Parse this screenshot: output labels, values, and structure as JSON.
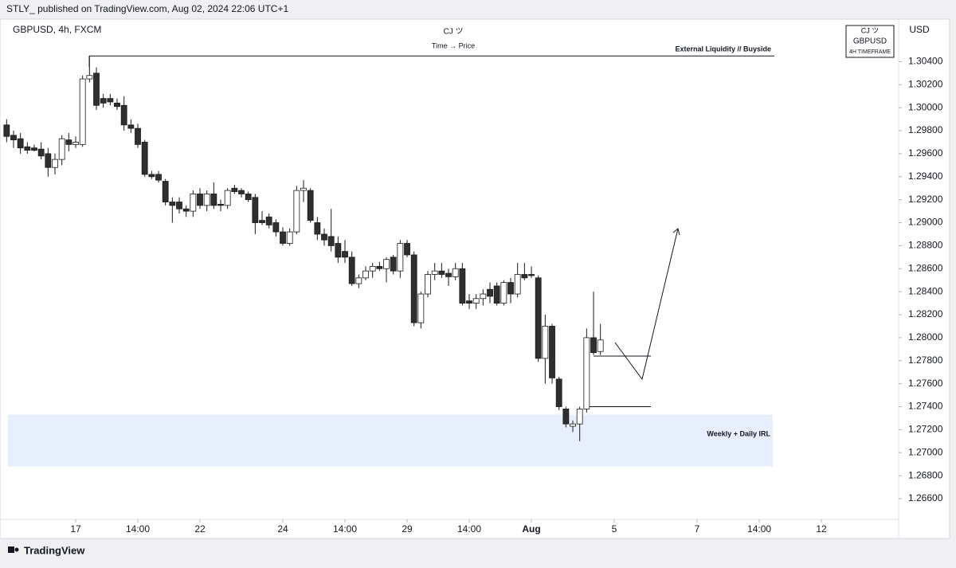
{
  "page": {
    "published": "STLY_ published on TradingView.com, Aug 02, 2024 22:06 UTC+1",
    "brand": "TradingView"
  },
  "chart_data": {
    "type": "candlestick",
    "title": "GBPUSD, 4h, FXCM",
    "header": {
      "author": "CJ ツ",
      "subtitle": "Time → Price"
    },
    "watermark": {
      "author": "CJ ツ",
      "symbol": "GBPUSD",
      "timeframe": "4H TIMEFRAME"
    },
    "currency": "USD",
    "up_color": "#ffffff",
    "down_color": "#2f2f2f",
    "outline_color": "#1a1a1a",
    "x": [
      0,
      1,
      2,
      3,
      4,
      5,
      6,
      7,
      8,
      9,
      10,
      11,
      12,
      13,
      14,
      15,
      16,
      17,
      18,
      19,
      20,
      21,
      22,
      23,
      24,
      25,
      26,
      27,
      28,
      29,
      30,
      31,
      32,
      33,
      34,
      35,
      36,
      37,
      38,
      39,
      40,
      41,
      42,
      43,
      44,
      45,
      46,
      47,
      48,
      49,
      50,
      51,
      52,
      53,
      54,
      55,
      56,
      57,
      58,
      59,
      60,
      61,
      62,
      63,
      64,
      65,
      66,
      67,
      68,
      69,
      70,
      71,
      72,
      73,
      74,
      75,
      76,
      77,
      78,
      79,
      80,
      81,
      82,
      83,
      84,
      85,
      86
    ],
    "open": [
      1.2985,
      1.2976,
      1.2973,
      1.2966,
      1.2965,
      1.2964,
      1.296,
      1.2948,
      1.2955,
      1.2972,
      1.2968,
      1.2968,
      1.3025,
      1.303,
      1.3008,
      1.3008,
      1.3004,
      1.3002,
      1.2985,
      1.2982,
      1.297,
      1.2942,
      1.2942,
      1.2936,
      1.2918,
      1.2918,
      1.2912,
      1.291,
      1.2925,
      1.2915,
      1.2925,
      1.2916,
      1.2915,
      1.293,
      1.2928,
      1.2925,
      1.2922,
      1.2902,
      1.2905,
      1.29,
      1.2892,
      1.2882,
      1.2892,
      1.2928,
      1.2928,
      1.29,
      1.289,
      1.2888,
      1.2882,
      1.2875,
      1.287,
      1.2847,
      1.2852,
      1.2858,
      1.2862,
      1.286,
      1.287,
      1.2858,
      1.2882,
      1.2872,
      1.2813,
      1.2838,
      1.2855,
      1.2858,
      1.2856,
      1.2853,
      1.286,
      1.2832,
      1.283,
      1.2834,
      1.2842,
      1.2845,
      1.283,
      1.2848,
      1.2838,
      1.2855,
      1.2855,
      1.2852,
      1.2782,
      1.281,
      1.2764,
      1.2738,
      1.2723,
      1.2725,
      1.2738,
      1.28,
      1.2788
    ],
    "high": [
      1.299,
      1.298,
      1.2978,
      1.297,
      1.2968,
      1.297,
      1.2965,
      1.296,
      1.2976,
      1.2978,
      1.2975,
      1.3028,
      1.3045,
      1.3035,
      1.3012,
      1.3012,
      1.3008,
      1.301,
      1.299,
      1.2986,
      1.2972,
      1.2945,
      1.2945,
      1.2938,
      1.2922,
      1.2922,
      1.2915,
      1.2928,
      1.293,
      1.2928,
      1.2935,
      1.292,
      1.293,
      1.2933,
      1.293,
      1.2927,
      1.2925,
      1.291,
      1.2908,
      1.2903,
      1.2896,
      1.2895,
      1.2932,
      1.2937,
      1.293,
      1.2905,
      1.2895,
      1.2912,
      1.2888,
      1.2885,
      1.2875,
      1.2855,
      1.2862,
      1.2865,
      1.2866,
      1.287,
      1.2872,
      1.2885,
      1.2885,
      1.2875,
      1.284,
      1.2858,
      1.2865,
      1.2865,
      1.286,
      1.2865,
      1.2865,
      1.2838,
      1.2838,
      1.2842,
      1.2848,
      1.2848,
      1.285,
      1.2852,
      1.2865,
      1.2865,
      1.2862,
      1.2854,
      1.282,
      1.2812,
      1.2766,
      1.274,
      1.2728,
      1.274,
      1.2808,
      1.284,
      1.2812
    ],
    "low": [
      1.297,
      1.2965,
      1.296,
      1.296,
      1.2962,
      1.2955,
      1.294,
      1.2942,
      1.295,
      1.2962,
      1.2965,
      1.2966,
      1.3022,
      1.2998,
      1.3,
      1.3002,
      1.2998,
      1.298,
      1.2978,
      1.2965,
      1.294,
      1.2938,
      1.2935,
      1.2915,
      1.29,
      1.2908,
      1.2905,
      1.2905,
      1.2912,
      1.291,
      1.2912,
      1.291,
      1.2912,
      1.2925,
      1.2922,
      1.2918,
      1.289,
      1.2898,
      1.2895,
      1.2888,
      1.288,
      1.288,
      1.289,
      1.2918,
      1.29,
      1.2885,
      1.288,
      1.2875,
      1.2865,
      1.2865,
      1.2845,
      1.2843,
      1.285,
      1.2852,
      1.2858,
      1.2848,
      1.2855,
      1.2852,
      1.287,
      1.281,
      1.2808,
      1.2835,
      1.285,
      1.2852,
      1.2845,
      1.285,
      1.2828,
      1.2825,
      1.2825,
      1.2828,
      1.283,
      1.2828,
      1.2828,
      1.283,
      1.2835,
      1.285,
      1.2852,
      1.2779,
      1.276,
      1.276,
      1.2737,
      1.2722,
      1.2718,
      1.271,
      1.2735,
      1.2785,
      1.2785
    ],
    "close": [
      1.2975,
      1.2972,
      1.2965,
      1.2963,
      1.2963,
      1.2958,
      1.2948,
      1.2955,
      1.2973,
      1.2968,
      1.297,
      1.3025,
      1.3028,
      1.3002,
      1.3004,
      1.3005,
      1.3001,
      1.2985,
      1.2982,
      1.2968,
      1.2942,
      1.294,
      1.2937,
      1.2918,
      1.2915,
      1.2912,
      1.291,
      1.2925,
      1.2915,
      1.2925,
      1.2915,
      1.2915,
      1.2928,
      1.2927,
      1.2925,
      1.292,
      1.29,
      1.29,
      1.2898,
      1.2892,
      1.2882,
      1.2892,
      1.2928,
      1.293,
      1.2902,
      1.289,
      1.2885,
      1.288,
      1.287,
      1.287,
      1.2847,
      1.2852,
      1.2858,
      1.2862,
      1.286,
      1.2868,
      1.2858,
      1.2882,
      1.2872,
      1.2813,
      1.2838,
      1.2855,
      1.2858,
      1.2855,
      1.2853,
      1.286,
      1.283,
      1.283,
      1.2834,
      1.2838,
      1.2836,
      1.283,
      1.2848,
      1.2838,
      1.2855,
      1.2852,
      1.2854,
      1.2782,
      1.281,
      1.2765,
      1.274,
      1.2725,
      1.2725,
      1.2738,
      1.28,
      1.2787,
      1.2798
    ],
    "xlim": [
      0,
      129
    ],
    "xticks": [
      {
        "value": 10,
        "label": "17"
      },
      {
        "value": 19,
        "label": "14:00"
      },
      {
        "value": 28,
        "label": "22"
      },
      {
        "value": 40,
        "label": "24"
      },
      {
        "value": 49,
        "label": "14:00"
      },
      {
        "value": 58,
        "label": "29"
      },
      {
        "value": 67,
        "label": "14:00"
      },
      {
        "value": 76,
        "label": "Aug"
      },
      {
        "value": 88,
        "label": "5"
      },
      {
        "value": 100,
        "label": "7"
      },
      {
        "value": 109,
        "label": "14:00"
      },
      {
        "value": 118,
        "label": "12"
      }
    ],
    "ylim": [
      1.2642,
      1.3077
    ],
    "yticks": [
      {
        "value": 1.266,
        "label": "1.26600"
      },
      {
        "value": 1.268,
        "label": "1.26800"
      },
      {
        "value": 1.27,
        "label": "1.27000"
      },
      {
        "value": 1.272,
        "label": "1.27200"
      },
      {
        "value": 1.274,
        "label": "1.27400"
      },
      {
        "value": 1.276,
        "label": "1.27600"
      },
      {
        "value": 1.278,
        "label": "1.27800"
      },
      {
        "value": 1.28,
        "label": "1.28000"
      },
      {
        "value": 1.282,
        "label": "1.28200"
      },
      {
        "value": 1.284,
        "label": "1.28400"
      },
      {
        "value": 1.286,
        "label": "1.28600"
      },
      {
        "value": 1.288,
        "label": "1.28800"
      },
      {
        "value": 1.29,
        "label": "1.29000"
      },
      {
        "value": 1.292,
        "label": "1.29200"
      },
      {
        "value": 1.294,
        "label": "1.29400"
      },
      {
        "value": 1.296,
        "label": "1.29600"
      },
      {
        "value": 1.298,
        "label": "1.29800"
      },
      {
        "value": 1.3,
        "label": "1.30000"
      },
      {
        "value": 1.302,
        "label": "1.30200"
      },
      {
        "value": 1.304,
        "label": "1.30400"
      }
    ],
    "liquidity": {
      "text": "External Liquidity // Buyside",
      "value": 1.3045
    },
    "zone": {
      "text": "Weekly + Daily IRL",
      "range": [
        1.2688,
        1.2733
      ],
      "color": "#e8effc"
    },
    "levels": [
      1.2784,
      1.274
    ]
  }
}
